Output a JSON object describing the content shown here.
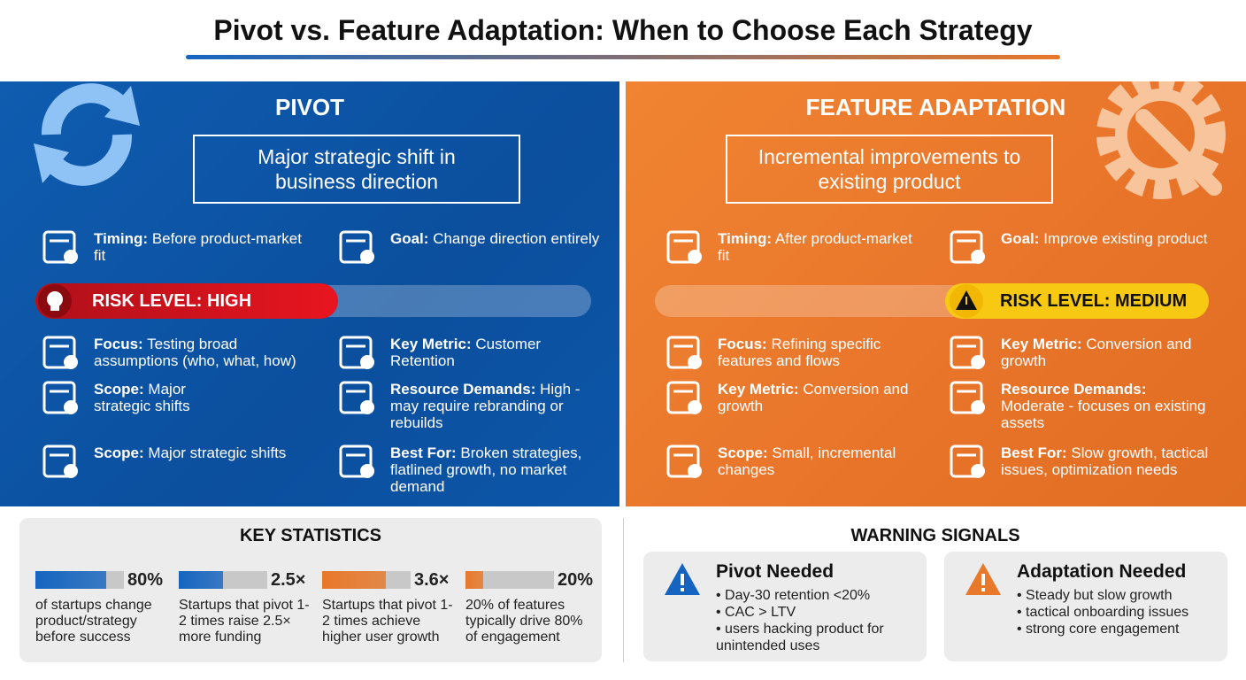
{
  "title": "Pivot vs. Feature Adaptation: When to Choose Each Strategy",
  "pivot": {
    "heading": "PIVOT",
    "definition": "Major strategic shift in business direction",
    "risk": "RISK LEVEL: HIGH",
    "items": [
      {
        "label": "Timing:",
        "text": "Before product-market fit"
      },
      {
        "label": "Goal:",
        "text": "Change direction entirely"
      },
      {
        "label": "Focus:",
        "text": "Testing broad assumptions (who, what, how)"
      },
      {
        "label": "Key Metric:",
        "text": "Customer Retention"
      },
      {
        "label": "Scope:",
        "text": "Major strategic shifts"
      },
      {
        "label": "Resource Demands:",
        "text": "High - may require rebranding or rebuilds"
      },
      {
        "label": "Scope:",
        "text": "Major strategic shifts"
      },
      {
        "label": "Best For:",
        "text": "Broken strategies, flatlined growth, no market demand"
      }
    ]
  },
  "adaptation": {
    "heading": "FEATURE ADAPTATION",
    "definition": "Incremental improvements to existing product",
    "risk": "RISK LEVEL: MEDIUM",
    "items": [
      {
        "label": "Timing:",
        "text": "After product-market fit"
      },
      {
        "label": "Goal:",
        "text": "Improve existing product"
      },
      {
        "label": "Focus:",
        "text": "Refining specific features and flows"
      },
      {
        "label": "Key Metric:",
        "text": "Conversion and growth"
      },
      {
        "label": "Key Metric:",
        "text": "Conversion and growth"
      },
      {
        "label": "Resource Demands:",
        "text": "Moderate - focuses on existing assets"
      },
      {
        "label": "Scope:",
        "text": "Small, incremental changes"
      },
      {
        "label": "Best For:",
        "text": "Slow growth, tactical issues, optimization needs"
      }
    ]
  },
  "key_statistics": {
    "title": "KEY STATISTICS",
    "stats": [
      {
        "value": 80,
        "label": "80%",
        "color": "#1565c0",
        "text": "of startups change product/strategy before success"
      },
      {
        "value": 2.5,
        "label": "2.5×",
        "color": "#1565c0",
        "text": "Startups that pivot 1-2 times raise 2.5× more funding"
      },
      {
        "value": 3.6,
        "label": "3.6×",
        "color": "#e8782a",
        "text": "Startups that pivot 1-2 times achieve higher user growth"
      },
      {
        "value": 20,
        "label": "20%",
        "color": "#e8782a",
        "text": "20% of features typically drive 80% of engagement"
      }
    ]
  },
  "warning_signals": {
    "title": "WARNING SIGNALS",
    "cards": [
      {
        "heading": "Pivot Needed",
        "bullets": [
          "Day-30 retention <20%",
          "CAC > LTV",
          "users hacking product for unintended uses"
        ]
      },
      {
        "heading": "Adaptation Needed",
        "bullets": [
          "Steady but slow growth",
          "tactical onboarding issues",
          "strong core engagement"
        ]
      }
    ]
  }
}
